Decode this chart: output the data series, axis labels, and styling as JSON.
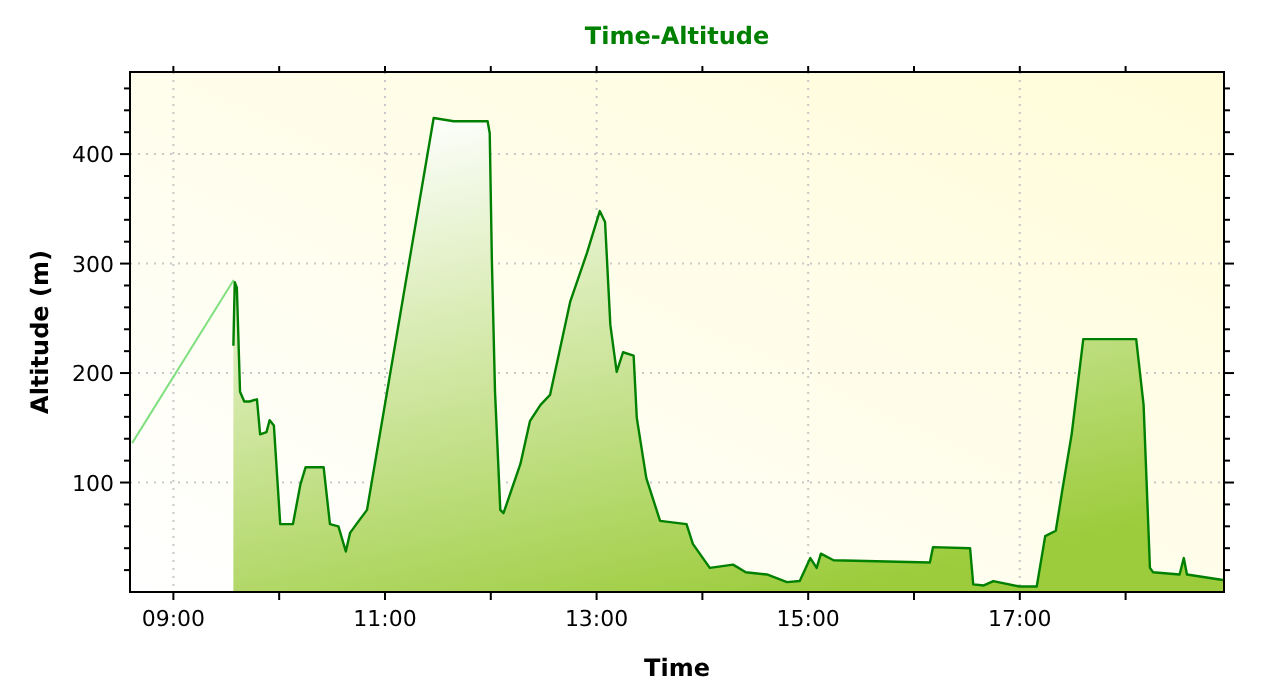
{
  "chart_data": {
    "type": "area",
    "title": "Time-Altitude",
    "xlabel": "Time",
    "ylabel": "Altitude (m)",
    "xlim": [
      8.59,
      18.93
    ],
    "ylim": [
      0,
      475
    ],
    "xticks": [
      {
        "value": 9,
        "label": "09:00"
      },
      {
        "value": 10,
        "label": null
      },
      {
        "value": 11,
        "label": "11:00"
      },
      {
        "value": 12,
        "label": null
      },
      {
        "value": 13,
        "label": "13:00"
      },
      {
        "value": 14,
        "label": null
      },
      {
        "value": 15,
        "label": "15:00"
      },
      {
        "value": 16,
        "label": null
      },
      {
        "value": 17,
        "label": "17:00"
      },
      {
        "value": 18,
        "label": null
      }
    ],
    "yticks": [
      {
        "value": 20,
        "label": null
      },
      {
        "value": 40,
        "label": null
      },
      {
        "value": 60,
        "label": null
      },
      {
        "value": 80,
        "label": null
      },
      100,
      {
        "value": 120,
        "label": null
      },
      {
        "value": 140,
        "label": null
      },
      {
        "value": 160,
        "label": null
      },
      {
        "value": 180,
        "label": null
      },
      200,
      {
        "value": 220,
        "label": null
      },
      {
        "value": 240,
        "label": null
      },
      {
        "value": 260,
        "label": null
      },
      {
        "value": 280,
        "label": null
      },
      300,
      {
        "value": 320,
        "label": null
      },
      {
        "value": 340,
        "label": null
      },
      {
        "value": 360,
        "label": null
      },
      {
        "value": 380,
        "label": null
      },
      400,
      {
        "value": 420,
        "label": null
      },
      {
        "value": 440,
        "label": null
      },
      {
        "value": 460,
        "label": null
      }
    ],
    "grid": true,
    "series": [
      {
        "type": "line",
        "color": "#80e080",
        "x": [
          8.61,
          9.57
        ],
        "values": [
          136,
          285
        ]
      },
      {
        "color": "#008000",
        "x": [
          9.567,
          9.58,
          9.6,
          9.63,
          9.67,
          9.72,
          9.79,
          9.82,
          9.88,
          9.91,
          9.95,
          10.01,
          10.13,
          10.2,
          10.25,
          10.42,
          10.48,
          10.56,
          10.63,
          10.67,
          10.73,
          10.83,
          11.46,
          11.65,
          11.97,
          11.99,
          12.01,
          12.04,
          12.09,
          12.12,
          12.28,
          12.37,
          12.47,
          12.56,
          12.75,
          12.91,
          13.03,
          13.08,
          13.13,
          13.19,
          13.25,
          13.35,
          13.38,
          13.47,
          13.6,
          13.85,
          13.91,
          14.07,
          14.29,
          14.41,
          14.61,
          14.8,
          14.92,
          15.02,
          15.08,
          15.12,
          15.24,
          16.15,
          16.18,
          16.53,
          16.56,
          16.66,
          16.75,
          17.0,
          17.16,
          17.24,
          17.34,
          17.4,
          17.49,
          17.6,
          18.1,
          18.17,
          18.23,
          18.26,
          18.51,
          18.55,
          18.58,
          18.92
        ],
        "values": [
          225,
          283,
          278,
          183,
          174,
          174,
          176,
          144,
          146,
          157,
          152,
          62,
          62,
          98,
          114,
          114,
          62,
          60,
          37,
          54,
          62,
          75,
          433,
          430,
          430,
          419,
          304,
          183,
          75,
          72,
          117,
          156,
          171,
          180,
          265,
          310,
          348,
          338,
          244,
          201,
          219,
          216,
          159,
          104,
          65,
          62,
          44,
          22,
          25,
          18,
          16,
          9,
          10,
          31,
          22,
          35,
          29,
          27,
          41,
          40,
          7,
          6,
          10,
          5,
          5,
          51,
          56,
          92,
          144,
          231,
          231,
          171,
          22,
          18,
          16,
          31,
          16,
          11
        ]
      }
    ]
  }
}
